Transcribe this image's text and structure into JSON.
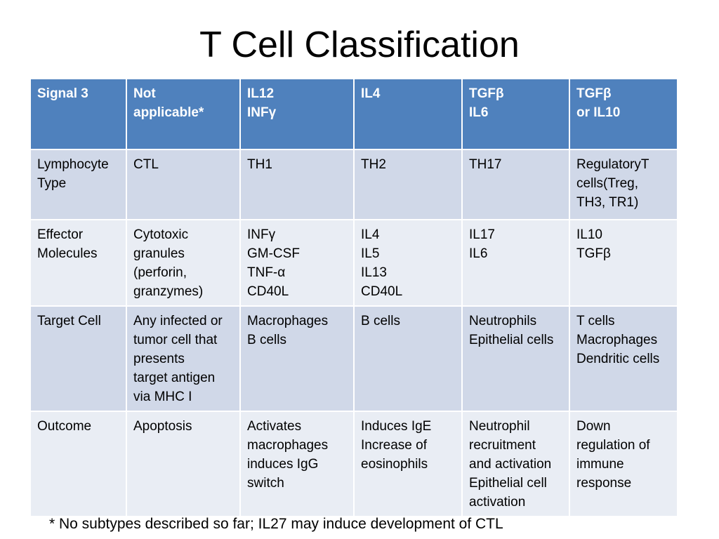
{
  "title": "T Cell Classification",
  "table": {
    "header": [
      "Signal 3",
      "Not\napplicable*",
      "IL12\nINFγ",
      "IL4",
      "TGFβ\nIL6",
      "TGFβ\nor IL10"
    ],
    "rows": [
      [
        "Lymphocyte\nType",
        "CTL",
        "TH1",
        "TH2",
        "TH17",
        "RegulatoryT\ncells(Treg,\nTH3, TR1)"
      ],
      [
        "Effector\nMolecules",
        "Cytotoxic\ngranules\n(perforin,\ngranzymes)",
        "INFγ\nGM-CSF\nTNF-α\nCD40L",
        "IL4\nIL5\nIL13\nCD40L",
        "IL17\nIL6",
        "IL10\nTGFβ"
      ],
      [
        "Target Cell",
        "Any infected or\ntumor cell that\npresents\ntarget antigen\nvia MHC I",
        "Macrophages\nB cells",
        "B cells",
        "Neutrophils\nEpithelial cells",
        "T cells\nMacrophages\nDendritic cells"
      ],
      [
        "Outcome",
        "Apoptosis",
        "Activates\nmacrophages\ninduces IgG\nswitch",
        "Induces IgE\nIncrease of\neosinophils",
        "Neutrophil\nrecruitment\nand activation\nEpithelial cell\nactivation",
        "Down\nregulation of\nimmune\nresponse"
      ]
    ]
  },
  "footnote": "* No subtypes described so far; IL27 may induce development of CTL",
  "colors": {
    "header_bg": "#4f81bd",
    "row_odd_bg": "#d0d8e8",
    "row_even_bg": "#e9edf4"
  }
}
